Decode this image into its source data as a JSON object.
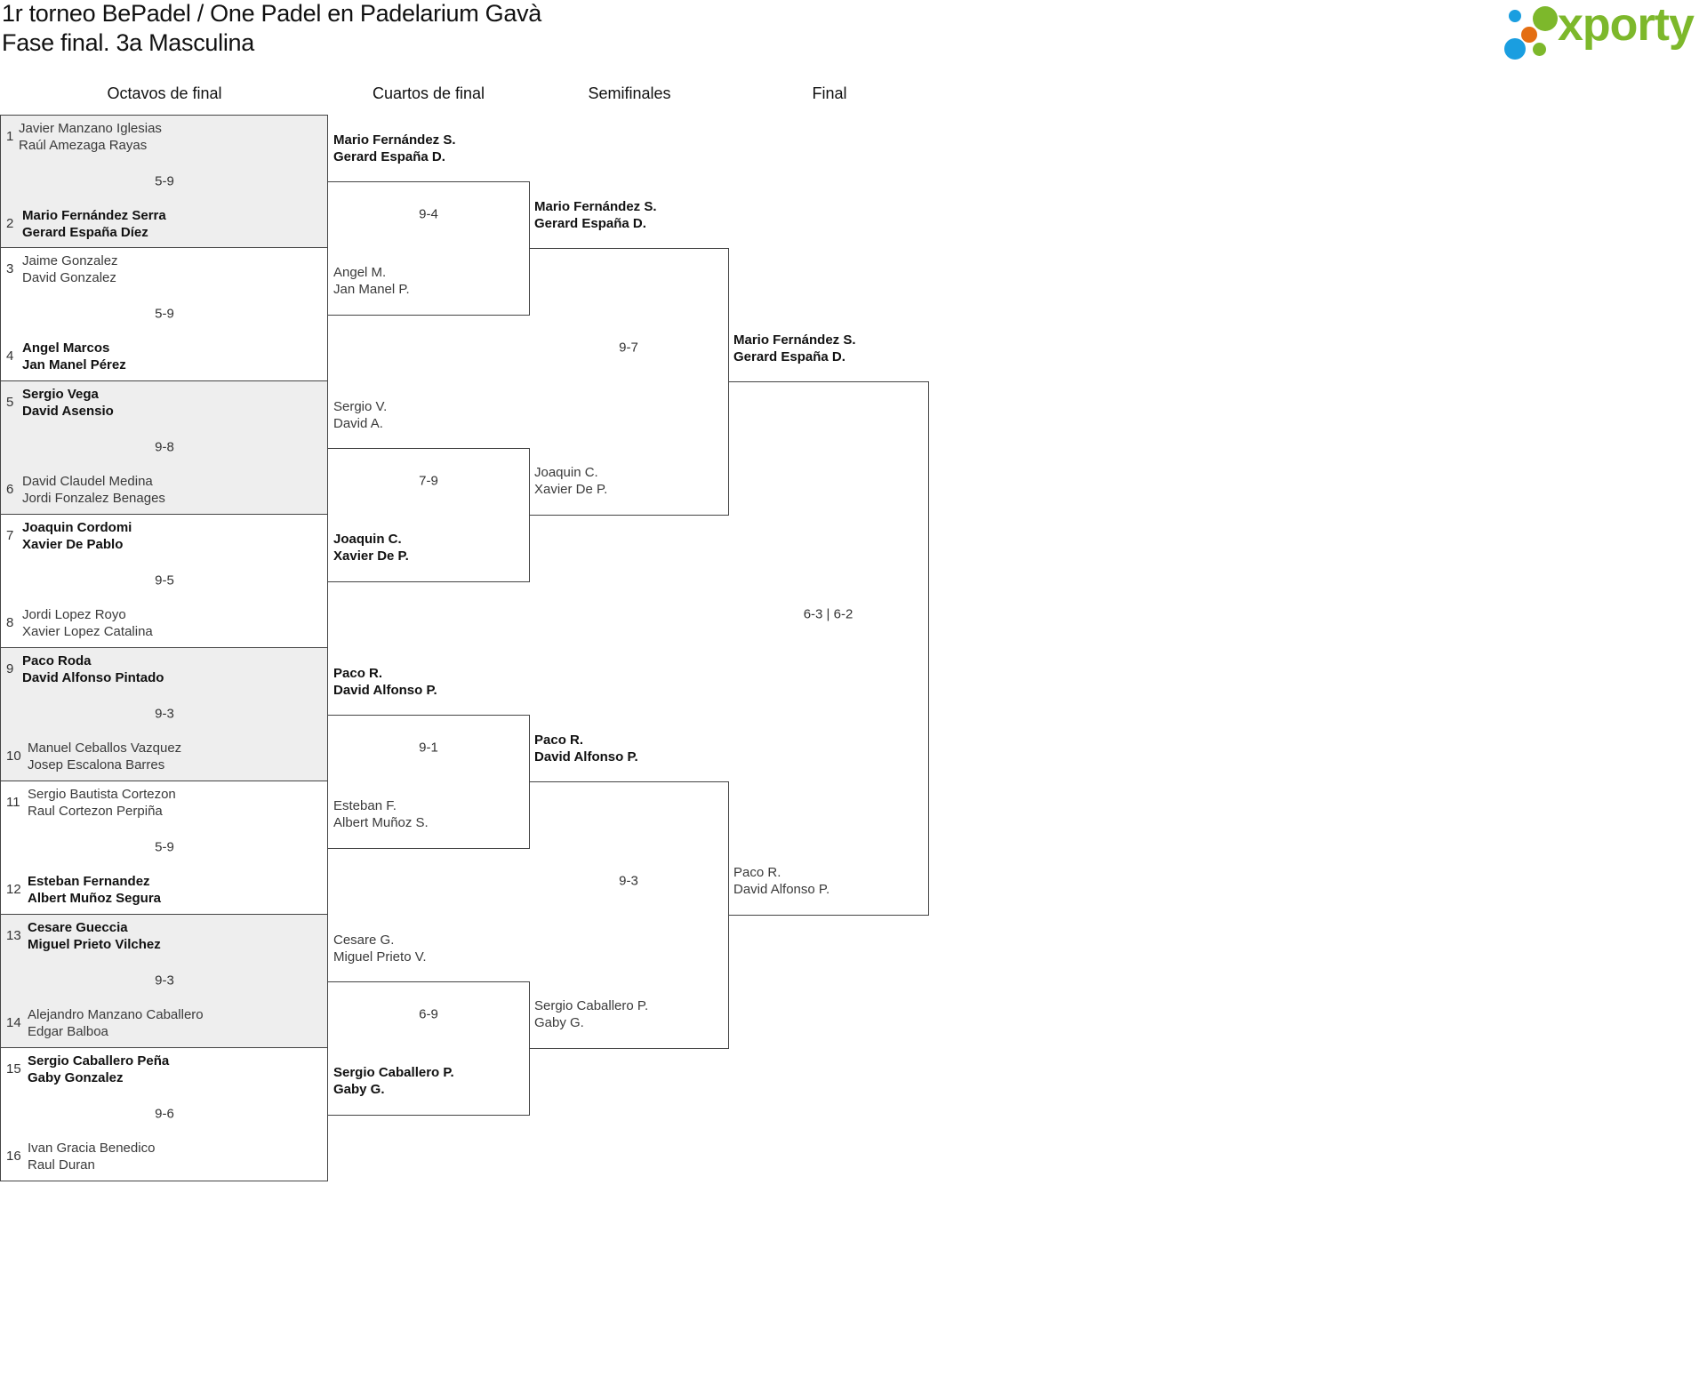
{
  "header": {
    "title_line1": "1r torneo BePadel / One Padel en Padelarium Gavà",
    "title_line2": "Fase final. 3a Masculina"
  },
  "logo": {
    "text": "xporty",
    "colors": {
      "green": "#7db82b",
      "blue": "#1a9ee0",
      "orange": "#e46e12"
    }
  },
  "colors": {
    "shade": "#eeeeee",
    "line": "#444444"
  },
  "rounds": [
    {
      "label": "Octavos de final",
      "matches": [
        {
          "score": "5-9",
          "teams": [
            {
              "seed": "1",
              "names": [
                "Javier Manzano Iglesias",
                "Raúl Amezaga Rayas"
              ],
              "winner": false
            },
            {
              "seed": "2",
              "names": [
                "Mario Fernández Serra",
                "Gerard España Díez"
              ],
              "winner": true
            }
          ]
        },
        {
          "score": "5-9",
          "teams": [
            {
              "seed": "3",
              "names": [
                "Jaime Gonzalez",
                "David Gonzalez"
              ],
              "winner": false
            },
            {
              "seed": "4",
              "names": [
                "Angel Marcos",
                "Jan Manel Pérez"
              ],
              "winner": true
            }
          ]
        },
        {
          "score": "9-8",
          "teams": [
            {
              "seed": "5",
              "names": [
                "Sergio Vega",
                "David Asensio"
              ],
              "winner": true
            },
            {
              "seed": "6",
              "names": [
                "David Claudel Medina",
                "Jordi Fonzalez Benages"
              ],
              "winner": false
            }
          ]
        },
        {
          "score": "9-5",
          "teams": [
            {
              "seed": "7",
              "names": [
                "Joaquin Cordomi",
                "Xavier De Pablo"
              ],
              "winner": true
            },
            {
              "seed": "8",
              "names": [
                "Jordi Lopez Royo",
                "Xavier Lopez Catalina"
              ],
              "winner": false
            }
          ]
        },
        {
          "score": "9-3",
          "teams": [
            {
              "seed": "9",
              "names": [
                "Paco Roda",
                "David Alfonso Pintado"
              ],
              "winner": true
            },
            {
              "seed": "10",
              "names": [
                "Manuel Ceballos Vazquez",
                "Josep Escalona Barres"
              ],
              "winner": false
            }
          ]
        },
        {
          "score": "5-9",
          "teams": [
            {
              "seed": "11",
              "names": [
                "Sergio Bautista Cortezon",
                "Raul Cortezon Perpiña"
              ],
              "winner": false
            },
            {
              "seed": "12",
              "names": [
                "Esteban Fernandez",
                "Albert Muñoz Segura"
              ],
              "winner": true
            }
          ]
        },
        {
          "score": "9-3",
          "teams": [
            {
              "seed": "13",
              "names": [
                "Cesare Gueccia",
                "Miguel Prieto Vilchez"
              ],
              "winner": true
            },
            {
              "seed": "14",
              "names": [
                "Alejandro Manzano Caballero",
                "Edgar Balboa"
              ],
              "winner": false
            }
          ]
        },
        {
          "score": "9-6",
          "teams": [
            {
              "seed": "15",
              "names": [
                "Sergio Caballero Peña",
                "Gaby Gonzalez"
              ],
              "winner": true
            },
            {
              "seed": "16",
              "names": [
                "Ivan Gracia Benedico",
                "Raul Duran"
              ],
              "winner": false
            }
          ]
        }
      ]
    },
    {
      "label": "Cuartos de final",
      "matches": [
        {
          "score": "9-4",
          "teams": [
            {
              "names": [
                "Mario Fernández S.",
                "Gerard España D."
              ],
              "winner": true
            },
            {
              "names": [
                "Angel M.",
                "Jan Manel P."
              ],
              "winner": false
            }
          ]
        },
        {
          "score": "7-9",
          "teams": [
            {
              "names": [
                "Sergio V.",
                "David A."
              ],
              "winner": false
            },
            {
              "names": [
                "Joaquin C.",
                "Xavier De P."
              ],
              "winner": true
            }
          ]
        },
        {
          "score": "9-1",
          "teams": [
            {
              "names": [
                "Paco R.",
                "David Alfonso P."
              ],
              "winner": true
            },
            {
              "names": [
                "Esteban F.",
                "Albert Muñoz S."
              ],
              "winner": false
            }
          ]
        },
        {
          "score": "6-9",
          "teams": [
            {
              "names": [
                "Cesare G.",
                "Miguel Prieto V."
              ],
              "winner": false
            },
            {
              "names": [
                "Sergio Caballero P.",
                "Gaby G."
              ],
              "winner": true
            }
          ]
        }
      ]
    },
    {
      "label": "Semifinales",
      "matches": [
        {
          "score": "9-7",
          "teams": [
            {
              "names": [
                "Mario Fernández S.",
                "Gerard España D."
              ],
              "winner": true
            },
            {
              "names": [
                "Joaquin C.",
                "Xavier De P."
              ],
              "winner": false
            }
          ]
        },
        {
          "score": "9-3",
          "teams": [
            {
              "names": [
                "Paco R.",
                "David Alfonso P."
              ],
              "winner": true
            },
            {
              "names": [
                "Sergio Caballero P.",
                "Gaby G."
              ],
              "winner": false
            }
          ]
        }
      ]
    },
    {
      "label": "Final",
      "matches": [
        {
          "score": "6-3 | 6-2",
          "teams": [
            {
              "names": [
                "Mario Fernández S.",
                "Gerard España D."
              ],
              "winner": true
            },
            {
              "names": [
                "Paco R.",
                "David Alfonso P."
              ],
              "winner": false
            }
          ]
        }
      ]
    }
  ]
}
